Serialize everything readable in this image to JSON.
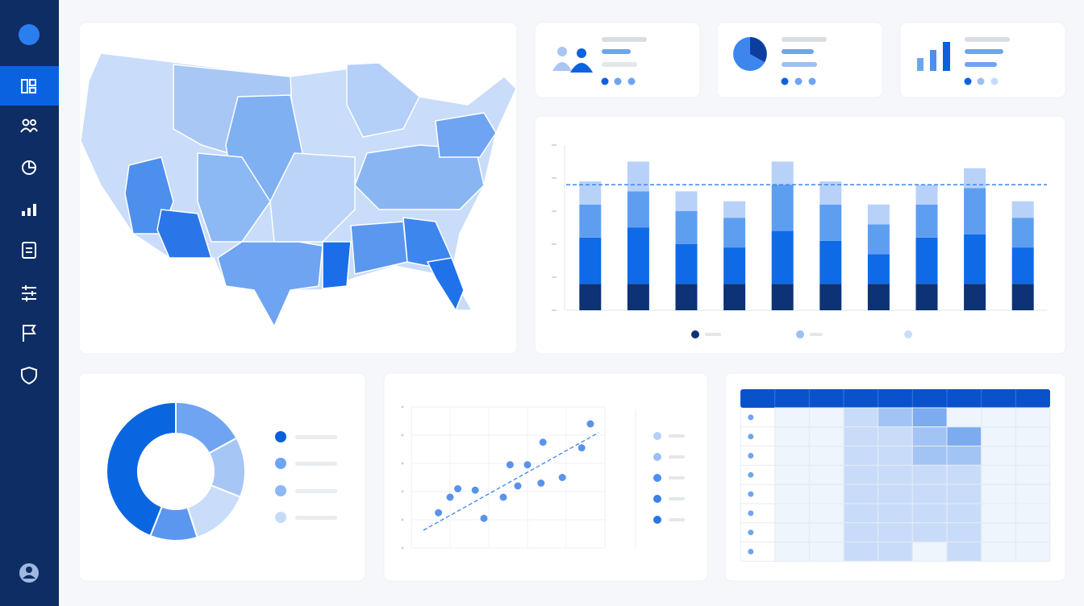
{
  "chart_data": [
    {
      "type": "bar",
      "stacked": true,
      "categories": [
        null,
        null,
        null,
        null,
        null,
        null,
        null,
        null,
        null,
        null
      ],
      "series": [
        {
          "color": "#0d3275",
          "values": [
            0.8,
            0.8,
            0.8,
            0.8,
            0.8,
            0.8,
            0.8,
            0.8,
            0.8,
            0.8
          ]
        },
        {
          "color": "#0f6ae8",
          "values": [
            1.4,
            1.7,
            1.2,
            1.1,
            1.6,
            1.3,
            0.9,
            1.4,
            1.5,
            1.1
          ]
        },
        {
          "color": "#5e9ef0",
          "values": [
            1.0,
            1.1,
            1.0,
            0.9,
            1.4,
            1.1,
            0.9,
            1.0,
            1.4,
            0.9
          ]
        },
        {
          "color": "#b7d1f8",
          "values": [
            0.7,
            0.9,
            0.6,
            0.5,
            0.7,
            0.7,
            0.6,
            0.6,
            0.6,
            0.5
          ]
        }
      ],
      "ylim": [
        0,
        5
      ],
      "yticks": [
        0,
        1,
        2,
        3,
        4,
        5
      ],
      "reference_line": 3.8
    },
    {
      "type": "pie",
      "donut": true,
      "values": [
        17,
        14,
        14,
        11,
        44
      ],
      "colors": [
        "#6ea4f1",
        "#a6c6f6",
        "#c9dcfa",
        "#5b97ee",
        "#0a66e0"
      ]
    },
    {
      "type": "scatter",
      "x": [
        1.4,
        2.0,
        2.4,
        3.3,
        3.75,
        4.75,
        5.1,
        6.0,
        5.5,
        6.7,
        6.8,
        7.8,
        8.8,
        9.25
      ],
      "values": [
        2.5,
        3.6,
        4.2,
        4.1,
        2.1,
        3.6,
        5.9,
        5.9,
        4.4,
        4.6,
        7.5,
        5.0,
        7.1,
        8.8
      ],
      "color": "#3d80e6",
      "xlim": [
        0,
        10
      ],
      "ylim": [
        0,
        10
      ],
      "xticks": [
        0,
        2,
        4,
        6,
        8,
        10
      ],
      "yticks": [
        0,
        2,
        4,
        6,
        8,
        10
      ],
      "grid": true
    },
    {
      "type": "heatmap",
      "color": "#2f7ae8",
      "values": [
        [
          0,
          0,
          1,
          2,
          3,
          0,
          0,
          0
        ],
        [
          0,
          0,
          1,
          1,
          2,
          3,
          0,
          0
        ],
        [
          0,
          0,
          1,
          1,
          2,
          2,
          0,
          0
        ],
        [
          0,
          0,
          1,
          1,
          1,
          1,
          0,
          0
        ],
        [
          0,
          0,
          1,
          1,
          1,
          1,
          0,
          0
        ],
        [
          0,
          0,
          1,
          1,
          1,
          1,
          0,
          0
        ],
        [
          0,
          0,
          1,
          1,
          1,
          1,
          0,
          0
        ],
        [
          0,
          0,
          1,
          1,
          0,
          1,
          0,
          0
        ]
      ]
    }
  ]
}
